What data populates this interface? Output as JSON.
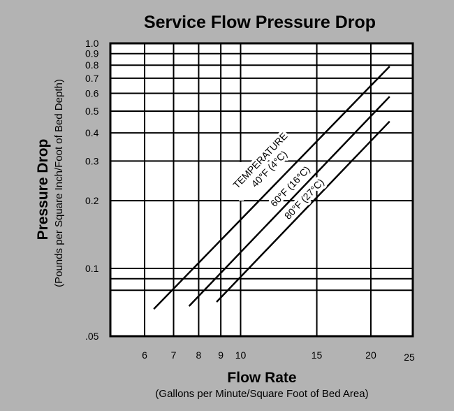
{
  "chart_data": {
    "type": "line",
    "title": "Service Flow Pressure Drop",
    "xlabel": "Flow Rate",
    "xlabel_sub": "(Gallons per Minute/Square Foot of Bed Area)",
    "ylabel": "Pressure Drop",
    "ylabel_sub": "(Pounds per Square Inch/Foot of Bed Depth)",
    "x_scale": "log",
    "y_scale": "log",
    "xlim": [
      5,
      25
    ],
    "ylim": [
      0.05,
      1.0
    ],
    "grid": true,
    "x_gridlines": [
      6,
      7,
      8,
      9,
      10,
      15,
      20
    ],
    "y_gridlines": [
      0.08,
      0.09,
      0.1,
      0.2,
      0.3,
      0.4,
      0.5,
      0.6,
      0.7,
      0.8,
      0.9
    ],
    "x_ticks": [
      {
        "value": 6,
        "label": "6"
      },
      {
        "value": 7,
        "label": "7"
      },
      {
        "value": 8,
        "label": "8"
      },
      {
        "value": 9,
        "label": "9"
      },
      {
        "value": 10,
        "label": "10"
      },
      {
        "value": 15,
        "label": "15"
      },
      {
        "value": 20,
        "label": "20"
      },
      {
        "value": 25,
        "label": "25"
      }
    ],
    "y_ticks": [
      {
        "value": 1.0,
        "label": "1.0"
      },
      {
        "value": 0.9,
        "label": "0.9"
      },
      {
        "value": 0.8,
        "label": "0.8"
      },
      {
        "value": 0.7,
        "label": "0.7"
      },
      {
        "value": 0.6,
        "label": "0.6"
      },
      {
        "value": 0.5,
        "label": "0.5"
      },
      {
        "value": 0.4,
        "label": "0.4"
      },
      {
        "value": 0.3,
        "label": "0.3"
      },
      {
        "value": 0.2,
        "label": "0.2"
      },
      {
        "value": 0.1,
        "label": "0.1"
      },
      {
        "value": 0.05,
        "label": ".05"
      }
    ],
    "legend_title": "TEMPERATURE",
    "series": [
      {
        "name": "40°F (4°C)",
        "x": [
          6.3,
          22.1
        ],
        "y": [
          0.066,
          0.79
        ]
      },
      {
        "name": "60°F (16°C)",
        "x": [
          7.6,
          22.1
        ],
        "y": [
          0.068,
          0.58
        ]
      },
      {
        "name": "80°F (27°C)",
        "x": [
          8.8,
          22.1
        ],
        "y": [
          0.071,
          0.45
        ]
      }
    ],
    "line_color": "#000000",
    "background_color": "#b3b3b3",
    "plot_background": "#ffffff"
  }
}
